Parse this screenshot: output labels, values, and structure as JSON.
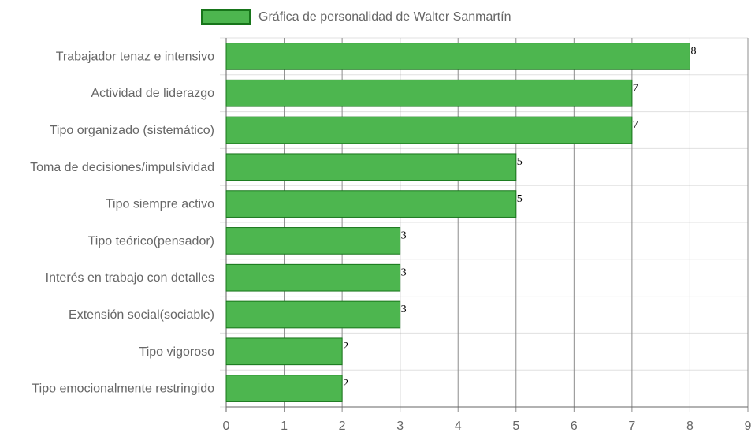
{
  "legend": {
    "label": "Gráfica de personalidad de Walter Sanmartín"
  },
  "colors": {
    "bar_fill": "#4db64f",
    "bar_border": "#17751a",
    "grid": "#e0e0e0",
    "grid_dark": "#8c8c8c",
    "text": "#666666"
  },
  "chart_data": {
    "type": "bar",
    "orientation": "horizontal",
    "categories": [
      "Trabajador tenaz e intensivo",
      "Actividad de liderazgo",
      "Tipo organizado (sistemático)",
      "Toma de decisiones/impulsividad",
      "Tipo siempre activo",
      "Tipo teórico(pensador)",
      "Interés en trabajo con detalles",
      "Extensión social(sociable)",
      "Tipo vigoroso",
      "Tipo emocionalmente restringido"
    ],
    "series": [
      {
        "name": "Gráfica de personalidad de Walter Sanmartín",
        "values": [
          8,
          7,
          7,
          5,
          5,
          3,
          3,
          3,
          2,
          2
        ]
      }
    ],
    "xlim": [
      0,
      9
    ],
    "xticks": [
      "0",
      "1",
      "2",
      "3",
      "4",
      "5",
      "6",
      "7",
      "8",
      "9"
    ],
    "legend_position": "top",
    "grid": true
  }
}
